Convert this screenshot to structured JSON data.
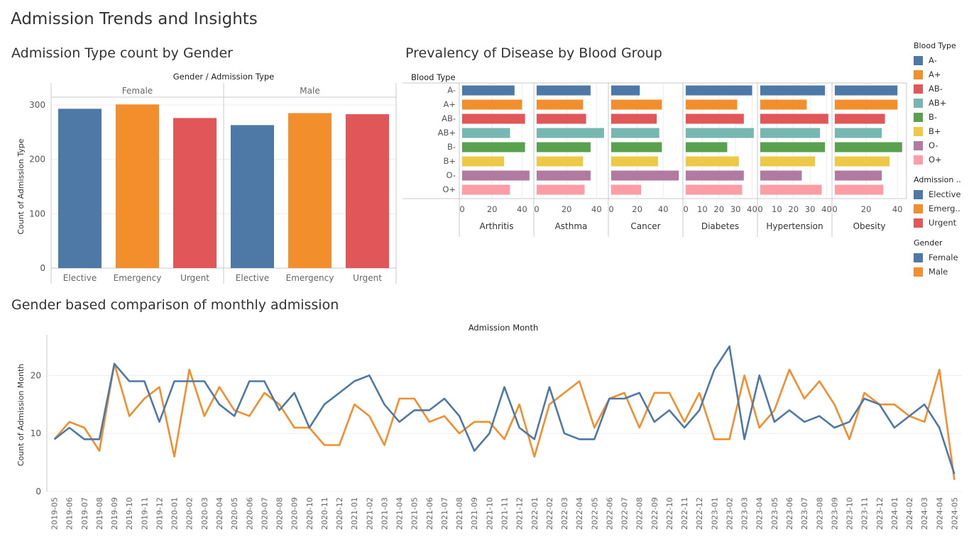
{
  "dashboard_title": "Admission Trends and Insights",
  "colors": {
    "blue": "#4E79A7",
    "orange": "#F28E2B",
    "red": "#E15759",
    "teal": "#76B7B2",
    "green": "#59A14F",
    "yellow": "#EDC948",
    "purple": "#B07AA1",
    "pink": "#FF9DA7"
  },
  "chart_data": [
    {
      "id": "admission_by_gender",
      "type": "bar",
      "title": "Admission Type count by Gender",
      "header": "Gender  /  Admission Type",
      "ylabel": "Count of Admission Type",
      "ylim": [
        0,
        300
      ],
      "yticks": [
        0,
        100,
        200,
        300
      ],
      "panels": [
        {
          "name": "Female",
          "categories": [
            "Elective",
            "Emergency",
            "Urgent"
          ],
          "values": [
            293,
            301,
            276
          ]
        },
        {
          "name": "Male",
          "categories": [
            "Elective",
            "Emergency",
            "Urgent"
          ],
          "values": [
            263,
            285,
            283
          ]
        }
      ]
    },
    {
      "id": "disease_by_blood",
      "type": "bar",
      "orientation": "horizontal",
      "title": "Prevalency of Disease by Blood Group",
      "row_header": "Blood Type",
      "categories": [
        "A-",
        "A+",
        "AB-",
        "AB+",
        "B-",
        "B+",
        "O-",
        "O+"
      ],
      "panels": [
        {
          "name": "Arthritis",
          "values": [
            35,
            40,
            42,
            32,
            42,
            28,
            45,
            32
          ],
          "xticks": [
            "0",
            "20",
            "40"
          ],
          "xmax": 46
        },
        {
          "name": "Asthma",
          "values": [
            36,
            31,
            33,
            45,
            36,
            31,
            36,
            32
          ],
          "xticks": [
            "0",
            "20",
            "40"
          ],
          "xmax": 46
        },
        {
          "name": "Cancer",
          "values": [
            22,
            39,
            35,
            37,
            39,
            36,
            52,
            23
          ],
          "xticks": [
            "0",
            "20",
            "40"
          ],
          "xmax": 53
        },
        {
          "name": "Diabetes",
          "values": [
            40,
            31,
            35,
            41,
            25,
            32,
            35,
            34
          ],
          "xticks": [
            "0",
            "10",
            "20",
            "30",
            "40"
          ],
          "xmax": 41.5
        },
        {
          "name": "Hypertension",
          "values": [
            39,
            28,
            41,
            36,
            39,
            33,
            25,
            37
          ],
          "xticks": [
            "0",
            "10",
            "20",
            "30",
            "40"
          ],
          "xmax": 41.5
        },
        {
          "name": "Obesity",
          "values": [
            40,
            40,
            32,
            30,
            43,
            35,
            30,
            31
          ],
          "xticks": [
            "0",
            "20",
            "40"
          ],
          "xmax": 44
        }
      ]
    },
    {
      "id": "monthly_admission",
      "type": "line",
      "title": "Gender based comparison of monthly admission",
      "header": "Admission Month",
      "ylabel": "Count of Admission Month",
      "ylim": [
        0,
        27
      ],
      "yticks": [
        0,
        10,
        20
      ],
      "x": [
        "2019-05",
        "2019-06",
        "2019-07",
        "2019-08",
        "2019-09",
        "2019-10",
        "2019-11",
        "2019-12",
        "2020-01",
        "2020-02",
        "2020-03",
        "2020-04",
        "2020-05",
        "2020-06",
        "2020-07",
        "2020-08",
        "2020-09",
        "2020-10",
        "2020-11",
        "2020-12",
        "2021-01",
        "2021-02",
        "2021-03",
        "2021-04",
        "2021-05",
        "2021-06",
        "2021-07",
        "2021-08",
        "2021-09",
        "2021-10",
        "2021-11",
        "2021-12",
        "2022-01",
        "2022-02",
        "2022-03",
        "2022-04",
        "2022-05",
        "2022-06",
        "2022-07",
        "2022-08",
        "2022-09",
        "2022-10",
        "2022-11",
        "2022-12",
        "2023-01",
        "2023-02",
        "2023-03",
        "2023-04",
        "2023-05",
        "2023-06",
        "2023-07",
        "2023-08",
        "2023-09",
        "2023-10",
        "2023-11",
        "2023-12",
        "2024-01",
        "2024-02",
        "2024-03",
        "2024-04",
        "2024-05"
      ],
      "series": [
        {
          "name": "Female",
          "values": [
            9,
            11,
            9,
            9,
            22,
            19,
            19,
            12,
            19,
            19,
            19,
            15,
            13,
            19,
            19,
            14,
            17,
            11,
            15,
            17,
            19,
            20,
            15,
            12,
            14,
            14,
            16,
            13,
            7,
            10,
            18,
            11,
            9,
            18,
            10,
            9,
            9,
            16,
            16,
            17,
            12,
            14,
            11,
            14,
            21,
            25,
            9,
            20,
            12,
            14,
            12,
            13,
            11,
            12,
            16,
            15,
            11,
            13,
            15,
            11,
            3
          ]
        },
        {
          "name": "Male",
          "values": [
            9,
            12,
            11,
            7,
            22,
            13,
            16,
            18,
            6,
            21,
            13,
            18,
            14,
            13,
            17,
            15,
            11,
            11,
            8,
            8,
            15,
            13,
            8,
            16,
            16,
            12,
            13,
            10,
            12,
            12,
            9,
            15,
            6,
            15,
            17,
            19,
            11,
            16,
            17,
            11,
            17,
            17,
            12,
            17,
            9,
            9,
            20,
            11,
            14,
            21,
            16,
            19,
            15,
            9,
            17,
            15,
            15,
            13,
            12,
            21,
            2
          ]
        }
      ]
    }
  ],
  "legends": [
    {
      "title": "Blood Type",
      "items": [
        {
          "label": "A-",
          "color": "#4E79A7"
        },
        {
          "label": "A+",
          "color": "#F28E2B"
        },
        {
          "label": "AB-",
          "color": "#E15759"
        },
        {
          "label": "AB+",
          "color": "#76B7B2"
        },
        {
          "label": "B-",
          "color": "#59A14F"
        },
        {
          "label": "B+",
          "color": "#EDC948"
        },
        {
          "label": "O-",
          "color": "#B07AA1"
        },
        {
          "label": "O+",
          "color": "#FF9DA7"
        }
      ]
    },
    {
      "title": "Admission ..",
      "items": [
        {
          "label": "Elective",
          "color": "#4E79A7"
        },
        {
          "label": "Emerg..",
          "color": "#F28E2B"
        },
        {
          "label": "Urgent",
          "color": "#E15759"
        }
      ]
    },
    {
      "title": "Gender",
      "items": [
        {
          "label": "Female",
          "color": "#4E79A7"
        },
        {
          "label": "Male",
          "color": "#F28E2B"
        }
      ]
    }
  ]
}
